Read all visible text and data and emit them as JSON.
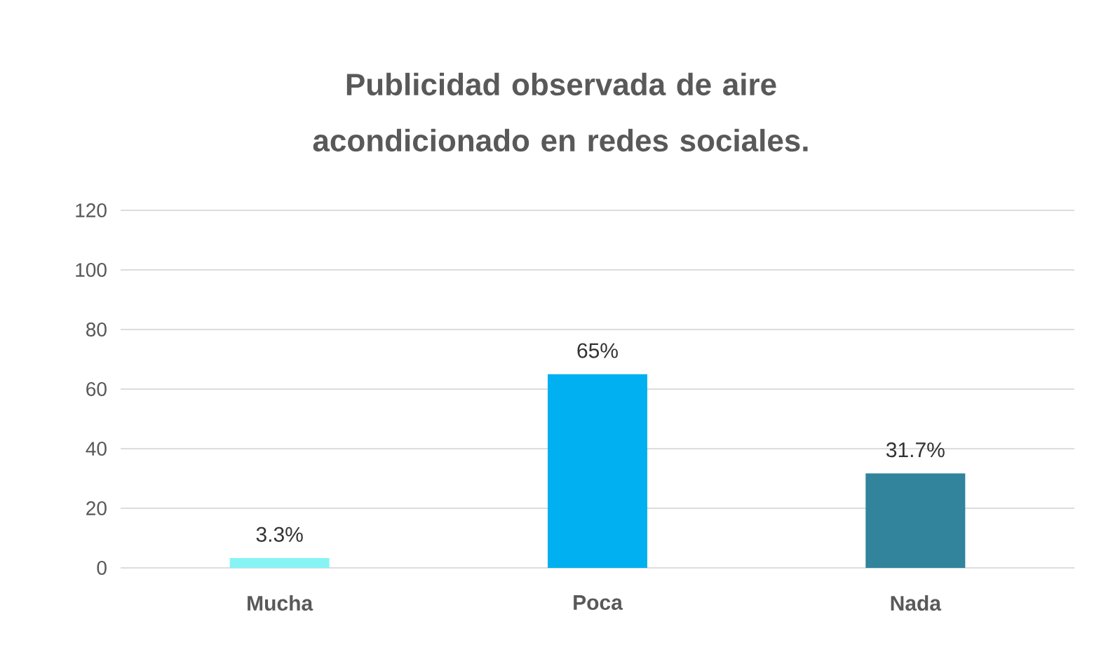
{
  "chart_data": {
    "type": "bar",
    "title": "Publicidad observada de aire acondicionado en redes sociales.",
    "categories": [
      "Mucha",
      "Poca",
      "Nada"
    ],
    "values": [
      3.3,
      65,
      31.7
    ],
    "value_labels": [
      "3.3%",
      "65%",
      "31.7%"
    ],
    "colors": [
      "#86f4f5",
      "#00b0f0",
      "#31849b"
    ],
    "ylim": [
      0,
      120
    ],
    "yticks": [
      0,
      20,
      40,
      60,
      80,
      100,
      120
    ],
    "grid": "y"
  }
}
